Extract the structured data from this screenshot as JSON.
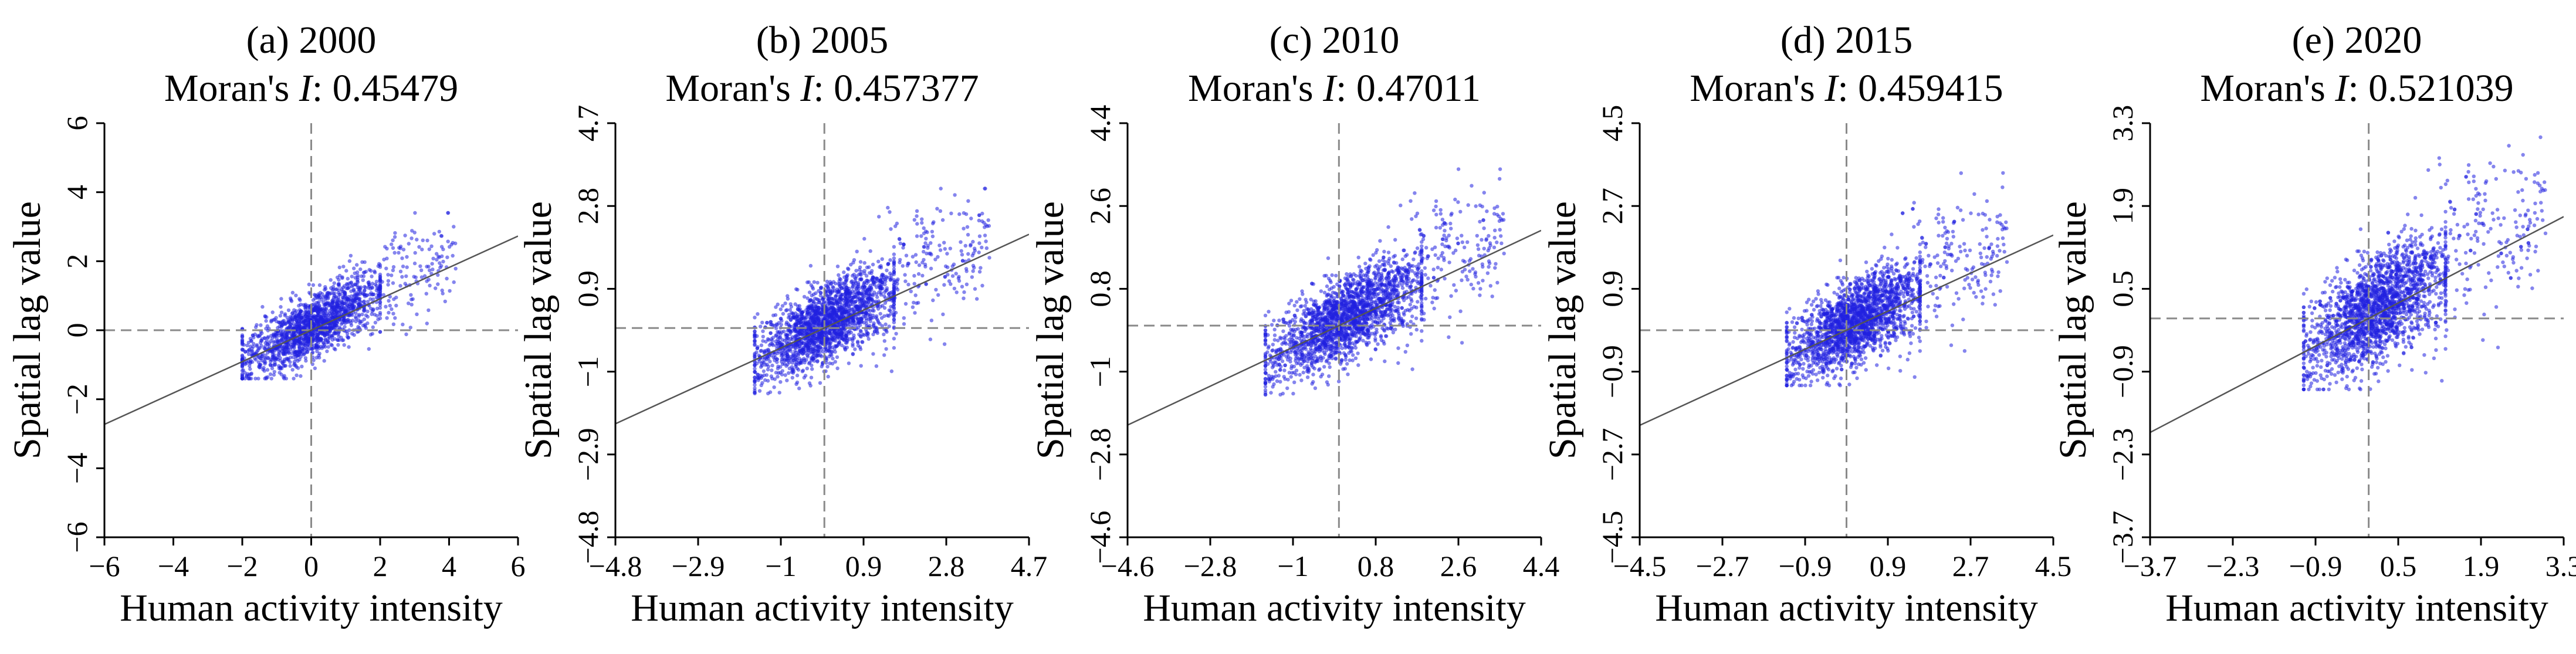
{
  "figure": {
    "xlabel": "Human activity intensity",
    "ylabel": "Spatial lag value",
    "point_color": "#2020e0",
    "fit_color": "#555555",
    "ref_line_color": "#8a8a8a"
  },
  "chart_data": [
    {
      "type": "scatter",
      "title": "(a) 2000",
      "moran_label": "Moran's ",
      "moran_symbol": "I",
      "moran_value": ": 0.45479",
      "moran_i": 0.45479,
      "xlabel": "Human activity intensity",
      "ylabel": "Spatial lag value",
      "xlim": [
        -6,
        6
      ],
      "ylim": [
        -6,
        6
      ],
      "xticks": [
        -6,
        -4,
        -2,
        0,
        2,
        4,
        6
      ],
      "yticks": [
        -6,
        -4,
        -2,
        0,
        2,
        4,
        6
      ],
      "xtick_labels": [
        "−6",
        "−4",
        "−2",
        "0",
        "2",
        "4",
        "6"
      ],
      "ytick_labels": [
        "−6",
        "−4",
        "−2",
        "0",
        "2",
        "4",
        "6"
      ],
      "fit_slope": 0.45479,
      "cloud": {
        "x_range": [
          -2,
          2
        ],
        "y_range": [
          -1.2,
          2.2
        ],
        "sparse_x_max": 4.2,
        "n_points": 1800
      }
    },
    {
      "type": "scatter",
      "title": "(b) 2005",
      "moran_label": "Moran's ",
      "moran_symbol": "I",
      "moran_value": ": 0.457377",
      "moran_i": 0.457377,
      "xlabel": "Human activity intensity",
      "ylabel": "Spatial lag value",
      "xlim": [
        -4.8,
        4.7
      ],
      "ylim": [
        -4.8,
        4.7
      ],
      "xticks": [
        -4.8,
        -2.9,
        -1,
        0.9,
        2.8,
        4.7
      ],
      "yticks": [
        -4.8,
        -2.9,
        -1,
        0.9,
        2.8,
        4.7
      ],
      "xtick_labels": [
        "−4.8",
        "−2.9",
        "−1",
        "0.9",
        "2.8",
        "4.7"
      ],
      "ytick_labels": [
        "−4.8",
        "−2.9",
        "−1",
        "0.9",
        "2.8",
        "4.7"
      ],
      "fit_slope": 0.457377,
      "cloud": {
        "x_range": [
          -1.6,
          1.6
        ],
        "y_range": [
          -1.3,
          2.0
        ],
        "sparse_x_max": 3.8,
        "n_points": 2200
      }
    },
    {
      "type": "scatter",
      "title": "(c) 2010",
      "moran_label": "Moran's ",
      "moran_symbol": "I",
      "moran_value": ": 0.47011",
      "moran_i": 0.47011,
      "xlabel": "Human activity intensity",
      "ylabel": "Spatial lag value",
      "xlim": [
        -4.6,
        4.4
      ],
      "ylim": [
        -4.6,
        4.4
      ],
      "xticks": [
        -4.6,
        -2.8,
        -1,
        0.8,
        2.6,
        4.4
      ],
      "yticks": [
        -4.6,
        -2.8,
        -1,
        0.8,
        2.6,
        4.4
      ],
      "xtick_labels": [
        "−4.6",
        "−2.8",
        "−1",
        "0.8",
        "2.6",
        "4.4"
      ],
      "ytick_labels": [
        "−4.6",
        "−2.8",
        "−1",
        "0.8",
        "2.6",
        "4.4"
      ],
      "fit_slope": 0.47011,
      "cloud": {
        "x_range": [
          -1.6,
          1.8
        ],
        "y_range": [
          -1.3,
          2.2
        ],
        "sparse_x_max": 3.6,
        "n_points": 2200
      }
    },
    {
      "type": "scatter",
      "title": "(d) 2015",
      "moran_label": "Moran's ",
      "moran_symbol": "I",
      "moran_value": ": 0.459415",
      "moran_i": 0.459415,
      "xlabel": "Human activity intensity",
      "ylabel": "Spatial lag value",
      "xlim": [
        -4.5,
        4.5
      ],
      "ylim": [
        -4.5,
        4.5
      ],
      "xticks": [
        -4.5,
        -2.7,
        -0.9,
        0.9,
        2.7,
        4.5
      ],
      "yticks": [
        -4.5,
        -2.7,
        -0.9,
        0.9,
        2.7,
        4.5
      ],
      "xtick_labels": [
        "−4.5",
        "−2.7",
        "−0.9",
        "0.9",
        "2.7",
        "4.5"
      ],
      "ytick_labels": [
        "−4.5",
        "−2.7",
        "−0.9",
        "0.9",
        "2.7",
        "4.5"
      ],
      "fit_slope": 0.459415,
      "cloud": {
        "x_range": [
          -1.3,
          1.6
        ],
        "y_range": [
          -1.0,
          2.4
        ],
        "sparse_x_max": 3.5,
        "n_points": 2200
      }
    },
    {
      "type": "scatter",
      "title": "(e) 2020",
      "moran_label": "Moran's ",
      "moran_symbol": "I",
      "moran_value": ": 0.521039",
      "moran_i": 0.521039,
      "xlabel": "Human activity intensity",
      "ylabel": "Spatial lag value",
      "xlim": [
        -3.7,
        3.3
      ],
      "ylim": [
        -3.7,
        3.3
      ],
      "xticks": [
        -3.7,
        -2.3,
        -0.9,
        0.5,
        1.9,
        3.3
      ],
      "yticks": [
        -3.7,
        -2.3,
        -0.9,
        0.5,
        1.9,
        3.3
      ],
      "xtick_labels": [
        "−3.7",
        "−2.3",
        "−0.9",
        "0.5",
        "1.9",
        "3.3"
      ],
      "ytick_labels": [
        "−3.7",
        "−2.3",
        "−0.9",
        "0.5",
        "1.9",
        "3.3"
      ],
      "fit_slope": 0.521039,
      "cloud": {
        "x_range": [
          -1.1,
          1.3
        ],
        "y_range": [
          -1.0,
          2.3
        ],
        "sparse_x_max": 3.0,
        "n_points": 2200
      }
    }
  ]
}
